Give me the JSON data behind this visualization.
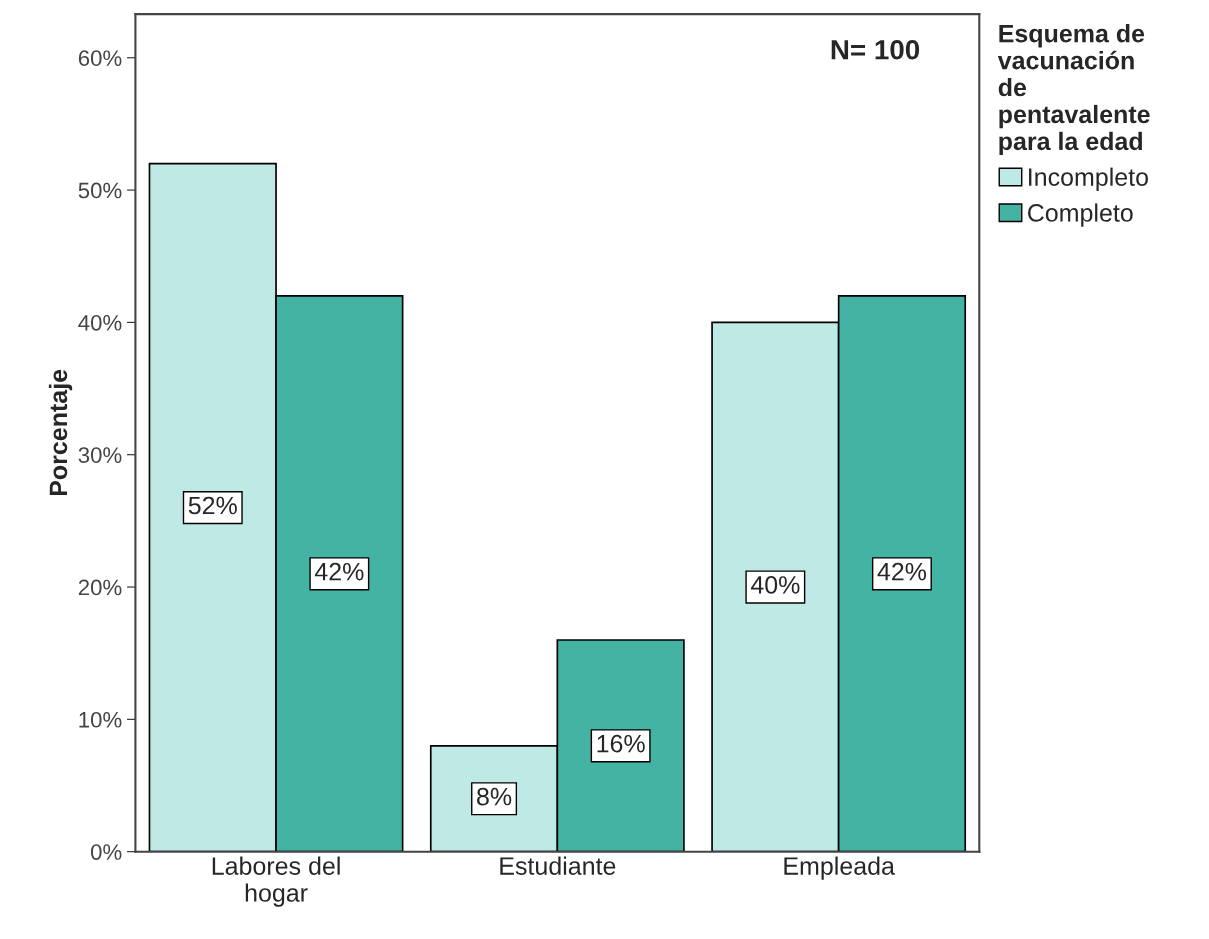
{
  "chart_data": {
    "type": "bar",
    "categories": [
      "Labores del\nhogar",
      "Estudiante",
      "Empleada"
    ],
    "series": [
      {
        "name": "Incompleto",
        "color": "#bfe9e4",
        "values": [
          52,
          8,
          40
        ],
        "value_labels": [
          "52%",
          "8%",
          "40%"
        ]
      },
      {
        "name": "Completo",
        "color": "#45b3a4",
        "values": [
          42,
          16,
          42
        ],
        "value_labels": [
          "42%",
          "16%",
          "42%"
        ]
      }
    ],
    "ylabel": "Porcentaje",
    "legend_title": "Esquema de\nvacunación\nde\npentavalente\npara la edad",
    "annotations": [
      "N= 100"
    ],
    "ylim": [
      0,
      63.3
    ],
    "yticks": [
      {
        "value": 0,
        "label": "0%"
      },
      {
        "value": 10,
        "label": "10%"
      },
      {
        "value": 20,
        "label": "20%"
      },
      {
        "value": 30,
        "label": "30%"
      },
      {
        "value": 40,
        "label": "40%"
      },
      {
        "value": 50,
        "label": "50%"
      },
      {
        "value": 60,
        "label": "60%"
      }
    ],
    "legend": "right",
    "grid": false
  }
}
